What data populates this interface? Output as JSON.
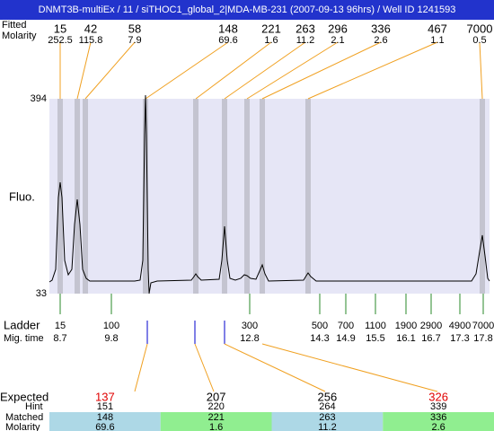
{
  "title": "DNMT3B-multiEx / 11 / siTHOC1_global_2|MDA-MB-231 (2007-09-13 96hrs) / Well ID 1241593",
  "top_header": {
    "size_label": "Fitted",
    "molarity_label": "Molarity"
  },
  "peaks": [
    {
      "size": 15,
      "molarity": 252.5
    },
    {
      "size": 42,
      "molarity": 115.8
    },
    {
      "size": 58,
      "molarity": 7.9
    },
    {
      "size": 148,
      "molarity": 69.6
    },
    {
      "size": 221,
      "molarity": 1.6
    },
    {
      "size": 263,
      "molarity": 11.2
    },
    {
      "size": 296,
      "molarity": 2.1
    },
    {
      "size": 336,
      "molarity": 2.6
    },
    {
      "size": 467,
      "molarity": 1.1
    },
    {
      "size": 7000,
      "molarity": 0.5
    }
  ],
  "y_axis": {
    "label": "Fluo.",
    "max": 394,
    "min": 33
  },
  "ladder": {
    "label": "Ladder",
    "time_label": "Mig. time",
    "bands": [
      {
        "size": 15,
        "time": 8.7
      },
      {
        "size": 100,
        "time": 9.8
      },
      {
        "size": 300,
        "time": 12.8
      },
      {
        "size": 500,
        "time": 14.3
      },
      {
        "size": 700,
        "time": 14.9
      },
      {
        "size": 1100,
        "time": 15.5
      },
      {
        "size": 1900,
        "time": 16.1
      },
      {
        "size": 2900,
        "time": 16.7
      },
      {
        "size": 4900,
        "time": 17.3
      },
      {
        "size": 7000,
        "time": 17.8
      }
    ]
  },
  "expected": {
    "labels": {
      "expected": "Expected",
      "hint": "Hint",
      "matched": "Matched",
      "molarity": "Molarity"
    },
    "rows": [
      {
        "expected": 137,
        "color": "#e00000",
        "hint": 151,
        "matched": 148,
        "molarity": 69.6
      },
      {
        "expected": 207,
        "color": "#000000",
        "hint": 220,
        "matched": 221,
        "molarity": 1.6
      },
      {
        "expected": 256,
        "color": "#000000",
        "hint": 264,
        "matched": 263,
        "molarity": 11.2
      },
      {
        "expected": 326,
        "color": "#e00000",
        "hint": 339,
        "matched": 336,
        "molarity": 2.6
      }
    ]
  }
}
